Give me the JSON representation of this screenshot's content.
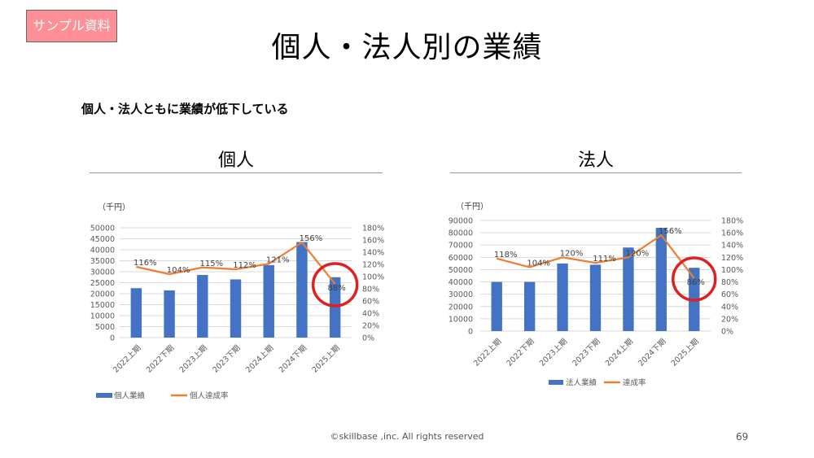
{
  "badge": "サンプル資料",
  "title": "個人・法人別の業績",
  "subtitle": "個人・法人ともに業績が低下している",
  "footer": "©skillbase ,inc. All rights reserved",
  "page_number": "69",
  "colors": {
    "bar": "#4472c4",
    "line": "#ed7d31",
    "highlight": "#e02020"
  },
  "chart_data": [
    {
      "type": "bar",
      "heading": "個人",
      "unit_label": "（千円）",
      "categories": [
        "2022上期",
        "2022下期",
        "2023上期",
        "2023下期",
        "2024上期",
        "2024下期",
        "2025上期"
      ],
      "series": [
        {
          "name": "個人業績",
          "type": "bar",
          "axis": "left",
          "values": [
            22500,
            21500,
            28500,
            26500,
            33000,
            43500,
            27500
          ]
        },
        {
          "name": "個人達成率",
          "type": "line",
          "axis": "right",
          "values": [
            1.16,
            1.04,
            1.15,
            1.12,
            1.21,
            1.56,
            0.88
          ],
          "labels": [
            "116%",
            "104%",
            "115%",
            "112%",
            "121%",
            "156%",
            "88%"
          ]
        }
      ],
      "y_left": {
        "min": 0,
        "max": 50000,
        "ticks": [
          "0",
          "5000",
          "10000",
          "15000",
          "20000",
          "25000",
          "30000",
          "35000",
          "40000",
          "45000",
          "50000"
        ]
      },
      "y_right": {
        "min": 0,
        "max": 1.8,
        "ticks": [
          "0%",
          "20%",
          "40%",
          "60%",
          "80%",
          "100%",
          "120%",
          "140%",
          "160%",
          "180%"
        ]
      },
      "highlight_category": "2025上期",
      "legend_position": "bottom"
    },
    {
      "type": "bar",
      "heading": "法人",
      "unit_label": "（千円）",
      "categories": [
        "2022上期",
        "2022下期",
        "2023上期",
        "2023下期",
        "2024上期",
        "2024下期",
        "2025上期"
      ],
      "series": [
        {
          "name": "法人業績",
          "type": "bar",
          "axis": "left",
          "values": [
            40000,
            40000,
            55000,
            54000,
            68000,
            84000,
            51500
          ]
        },
        {
          "name": "達成率",
          "type": "line",
          "axis": "right",
          "values": [
            1.18,
            1.04,
            1.2,
            1.11,
            1.2,
            1.56,
            0.86
          ],
          "labels": [
            "118%",
            "104%",
            "120%",
            "111%",
            "120%",
            "156%",
            "86%"
          ]
        }
      ],
      "y_left": {
        "min": 0,
        "max": 90000,
        "ticks": [
          "0",
          "10000",
          "20000",
          "30000",
          "40000",
          "50000",
          "60000",
          "70000",
          "80000",
          "90000"
        ]
      },
      "y_right": {
        "min": 0,
        "max": 1.8,
        "ticks": [
          "0%",
          "20%",
          "40%",
          "60%",
          "80%",
          "100%",
          "120%",
          "140%",
          "160%",
          "180%"
        ]
      },
      "highlight_category": "2025上期",
      "legend_position": "bottom"
    }
  ]
}
